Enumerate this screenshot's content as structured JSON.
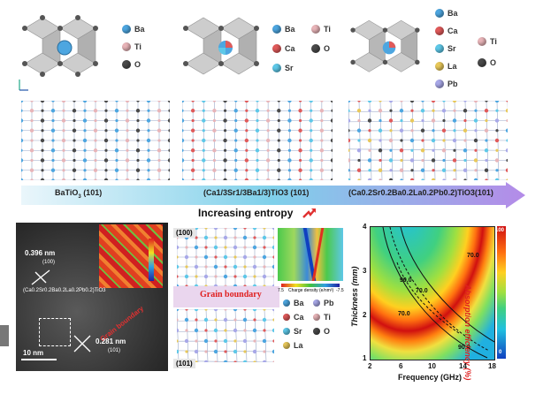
{
  "colors": {
    "ba": "#4da6e0",
    "ti": "#e8b4b8",
    "o": "#4a4a4a",
    "ca": "#e05a5a",
    "sr": "#5ec8e8",
    "la": "#e8c85a",
    "pb": "#a8a8e8",
    "arrow": "#a889e0"
  },
  "top_legends": {
    "left": [
      "Ba",
      "Ti",
      "O"
    ],
    "middle": [
      "Ba",
      "Ti",
      "Ca",
      "O",
      "Sr"
    ],
    "right": [
      "Ba",
      "Ca",
      "Sr",
      "Ti",
      "La",
      "O",
      "Pb"
    ]
  },
  "materials": {
    "m1": {
      "base": "BaTiO",
      "sub": "3",
      "tail": " (101)"
    },
    "m2": "(Ca1/3Sr1/3Ba1/3)TiO3 (101)",
    "m3": "(Ca0.2Sr0.2Ba0.2La0.2Pb0.2)TiO3(101)"
  },
  "arrow_label": "Increasing entropy",
  "tem": {
    "d1": "0.396 nm",
    "d1_plane": "(100)",
    "d2": "0.281 nm",
    "d2_plane": "(101)",
    "formula": "(Ca0.2Sr0.2Ba0.2La0.2Pb0.2)TiO3",
    "boundary": "Grain boundary",
    "scale": "10 nm"
  },
  "middle": {
    "top_label": "(100)",
    "bottom_label": "(101)",
    "grain": "Grain boundary",
    "legend_left": [
      "Ba",
      "Ca",
      "Sr",
      "La"
    ],
    "legend_right": [
      "Pb",
      "Ti",
      "O"
    ],
    "charge_label": "Charge density (e/nm³)",
    "charge_min": "7.5",
    "charge_max": "-7.5"
  },
  "chart_data": {
    "type": "heatmap",
    "xlabel": "Frequency (GHz)",
    "ylabel": "Thickness (mm)",
    "colorbar_label": "Absorption efficiency (%)",
    "x_ticks": [
      "2",
      "6",
      "10",
      "14",
      "18"
    ],
    "y_ticks": [
      "1",
      "2",
      "3",
      "4"
    ],
    "colorbar_ticks": [
      "100",
      "0"
    ],
    "contour_labels": [
      "70.0",
      "90.0",
      "70.0",
      "70.0",
      "90.0"
    ],
    "xlim": [
      2,
      18
    ],
    "ylim": [
      1,
      4
    ],
    "zlim": [
      0,
      100
    ]
  }
}
